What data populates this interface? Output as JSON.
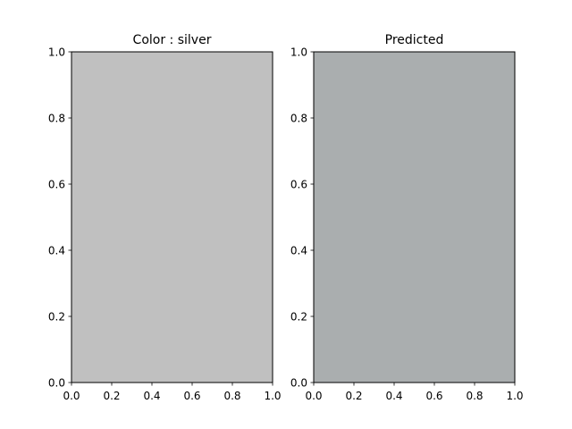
{
  "chart_data": [
    {
      "type": "heatmap",
      "title": "Color : silver",
      "fill_color": "#c0c0c0",
      "xlim": [
        0.0,
        1.0
      ],
      "ylim": [
        0.0,
        1.0
      ],
      "x_ticks": [
        "0.0",
        "0.2",
        "0.4",
        "0.6",
        "0.8",
        "1.0"
      ],
      "y_ticks": [
        "0.0",
        "0.2",
        "0.4",
        "0.6",
        "0.8",
        "1.0"
      ],
      "grid": false,
      "xlabel": "",
      "ylabel": ""
    },
    {
      "type": "heatmap",
      "title": "Predicted",
      "fill_color": "#aaaeaf",
      "xlim": [
        0.0,
        1.0
      ],
      "ylim": [
        0.0,
        1.0
      ],
      "x_ticks": [
        "0.0",
        "0.2",
        "0.4",
        "0.6",
        "0.8",
        "1.0"
      ],
      "y_ticks": [
        "0.0",
        "0.2",
        "0.4",
        "0.6",
        "0.8",
        "1.0"
      ],
      "grid": false,
      "xlabel": "",
      "ylabel": ""
    }
  ]
}
